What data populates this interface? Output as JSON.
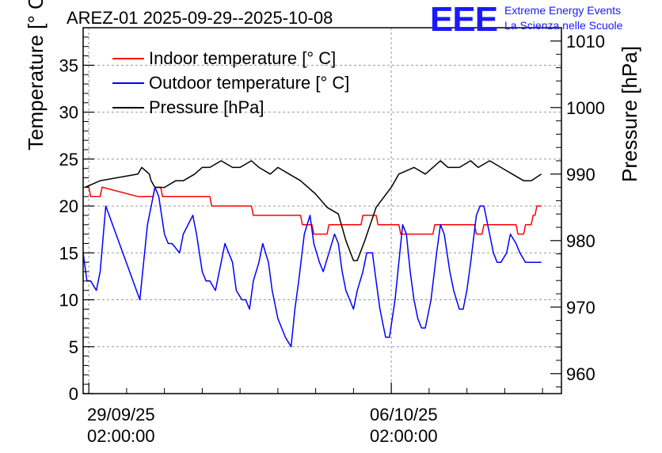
{
  "title": "AREZ-01 2025-09-29--2025-10-08",
  "logo": {
    "mark": "EEE",
    "line1": "Extreme Energy Events",
    "line2": "La Scienza nelle Scuole",
    "color": "#1a1aff"
  },
  "chart_data": {
    "type": "line",
    "title": "AREZ-01 2025-09-29--2025-10-08",
    "xlabel": "",
    "ylabel_left": "Temperature [° C]",
    "ylabel_right": "Pressure [hPa]",
    "x_unit": "days since 29/09/25 02:00:00",
    "xlim": [
      -0.15,
      12.5
    ],
    "ylim_left": [
      0,
      39
    ],
    "ylim_right": [
      957,
      1012
    ],
    "left_ticks": [
      0,
      5,
      10,
      15,
      20,
      25,
      30,
      35
    ],
    "right_ticks": [
      960,
      970,
      980,
      990,
      1000,
      1010
    ],
    "x_tick_labels": [
      {
        "x": 0,
        "line1": "29/09/25",
        "line2": "02:00:00"
      },
      {
        "x": 8,
        "line1": "06/10/25",
        "line2": "02:00:00"
      }
    ],
    "grid": true,
    "legend_position": "top-left",
    "series": [
      {
        "name": "Indoor temperature [° C]",
        "axis": "left",
        "color": "#ff0000",
        "x": [
          -0.1,
          0.0,
          0.05,
          0.3,
          0.35,
          1.3,
          1.35,
          1.7,
          1.75,
          1.9,
          1.95,
          3.2,
          3.25,
          4.3,
          4.35,
          5.6,
          5.65,
          5.9,
          5.95,
          6.3,
          6.35,
          6.45,
          6.5,
          7.2,
          7.25,
          7.6,
          7.65,
          8.2,
          8.25,
          9.1,
          9.15,
          10.2,
          10.25,
          10.4,
          10.45,
          10.6,
          10.65,
          11.3,
          11.35,
          11.5,
          11.55,
          11.7,
          11.75,
          11.8,
          11.85,
          11.97
        ],
        "values": [
          22,
          22,
          21,
          21,
          22,
          21,
          21,
          21,
          22,
          22,
          21,
          21,
          20,
          20,
          19,
          19,
          18,
          18,
          17,
          17,
          18,
          18,
          18,
          18,
          19,
          19,
          18,
          18,
          17,
          17,
          18,
          18,
          17,
          17,
          18,
          18,
          18,
          18,
          17,
          17,
          18,
          18,
          19,
          19,
          20,
          20
        ]
      },
      {
        "name": "Outdoor temperature [° C]",
        "axis": "left",
        "color": "#0000ff",
        "x": [
          -0.15,
          -0.05,
          0.05,
          0.2,
          0.3,
          0.45,
          1.35,
          1.55,
          1.75,
          1.85,
          2.0,
          2.1,
          2.2,
          2.4,
          2.5,
          2.75,
          2.85,
          3.0,
          3.1,
          3.2,
          3.35,
          3.45,
          3.6,
          3.7,
          3.8,
          3.9,
          4.05,
          4.15,
          4.25,
          4.35,
          4.5,
          4.6,
          4.75,
          4.85,
          5.0,
          5.1,
          5.2,
          5.35,
          5.45,
          5.55,
          5.7,
          5.85,
          5.95,
          6.1,
          6.2,
          6.35,
          6.5,
          6.6,
          6.7,
          6.8,
          6.9,
          7.0,
          7.1,
          7.25,
          7.35,
          7.5,
          7.6,
          7.7,
          7.85,
          7.95,
          8.1,
          8.2,
          8.3,
          8.4,
          8.5,
          8.6,
          8.7,
          8.8,
          8.9,
          9.05,
          9.2,
          9.3,
          9.4,
          9.55,
          9.65,
          9.8,
          9.9,
          10.0,
          10.1,
          10.25,
          10.35,
          10.45,
          10.6,
          10.7,
          10.8,
          10.9,
          11.05,
          11.15,
          11.3,
          11.4,
          11.55,
          11.65,
          11.75,
          11.85,
          11.97
        ],
        "values": [
          15,
          12,
          12,
          11,
          13,
          20,
          10,
          18,
          22,
          21,
          17,
          16,
          16,
          15,
          17,
          19,
          17,
          13,
          12,
          12,
          11,
          13,
          16,
          15,
          14,
          11,
          10,
          10,
          9,
          12,
          14,
          16,
          14,
          11,
          8,
          7,
          6,
          5,
          9,
          12,
          17,
          19,
          16,
          14,
          13,
          15,
          17,
          16,
          13,
          11,
          10,
          9,
          11,
          13,
          15,
          15,
          12,
          9,
          6,
          6,
          10,
          14,
          18,
          17,
          13,
          10,
          8,
          7,
          7,
          10,
          15,
          18,
          17,
          13,
          11,
          9,
          9,
          11,
          14,
          19,
          20,
          20,
          17,
          15,
          14,
          14,
          15,
          17,
          16,
          15,
          14,
          14,
          14,
          14,
          14
        ]
      },
      {
        "name": "Pressure [hPa]",
        "axis": "right",
        "color": "#000000",
        "x": [
          -0.1,
          0.3,
          1.3,
          1.4,
          1.6,
          1.65,
          1.75,
          2.0,
          2.3,
          2.5,
          2.8,
          3.0,
          3.2,
          3.5,
          3.8,
          4.0,
          4.3,
          4.5,
          4.8,
          5.0,
          5.3,
          5.6,
          6.0,
          6.3,
          6.6,
          6.8,
          7.0,
          7.1,
          7.3,
          7.6,
          8.0,
          8.2,
          8.6,
          8.9,
          9.1,
          9.3,
          9.5,
          9.8,
          10.1,
          10.3,
          10.6,
          10.9,
          11.2,
          11.5,
          11.7,
          11.97
        ],
        "values": [
          988,
          989,
          990,
          991,
          990,
          989,
          988,
          988,
          989,
          989,
          990,
          991,
          991,
          992,
          991,
          991,
          992,
          991,
          990,
          991,
          990,
          989,
          987,
          985,
          984,
          980,
          977,
          977,
          980,
          985,
          988,
          990,
          991,
          990,
          991,
          992,
          991,
          991,
          992,
          991,
          992,
          991,
          990,
          989,
          989,
          990
        ]
      }
    ]
  }
}
